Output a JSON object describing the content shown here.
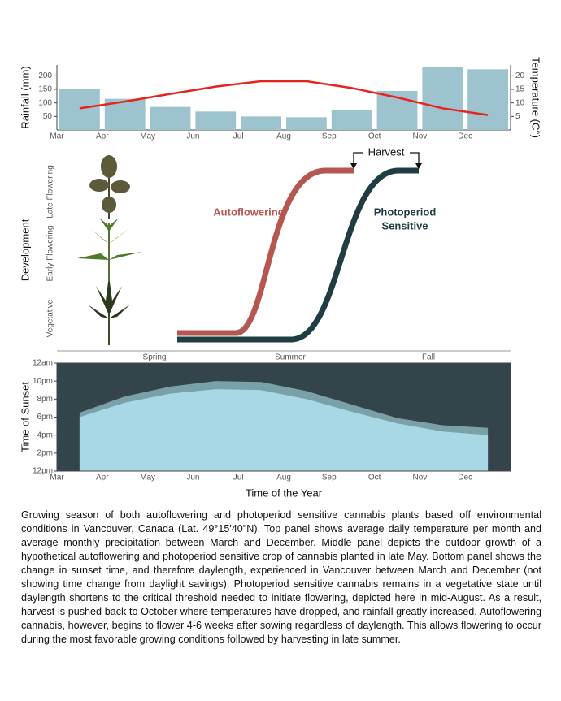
{
  "chart_data": [
    {
      "type": "bar",
      "categories": [
        "Mar",
        "Apr",
        "May",
        "Jun",
        "Jul",
        "Aug",
        "Sep",
        "Oct",
        "Nov",
        "Dec"
      ],
      "y_label": "Rainfall (mm)",
      "y2_label": "Temperature (C°)",
      "ylim": [
        0,
        240
      ],
      "yticks": [
        50,
        100,
        150,
        200
      ],
      "y2lim": [
        0,
        24
      ],
      "y2ticks": [
        5,
        10,
        15,
        20
      ],
      "series": [
        {
          "type": "bar",
          "color": "#9dc3cf",
          "values": [
            153,
            115,
            85,
            68,
            50,
            47,
            74,
            144,
            232,
            224
          ]
        },
        {
          "type": "line",
          "axis": "y2",
          "color": "#e8221c",
          "values": [
            8,
            10.5,
            13.3,
            16,
            18,
            18,
            15.5,
            12,
            8,
            5.5
          ]
        }
      ]
    },
    {
      "type": "area",
      "categories": [
        "Mar",
        "Apr",
        "May",
        "Jun",
        "Jul",
        "Aug",
        "Sep",
        "Oct",
        "Nov",
        "Dec"
      ],
      "y_label": "Time of Sunset",
      "x_label": "Time of the Year",
      "ylim": [
        12,
        24
      ],
      "yticks": [
        {
          "value": 12,
          "label": "12pm"
        },
        {
          "value": 14,
          "label": "2pm"
        },
        {
          "value": 16,
          "label": "4pm"
        },
        {
          "value": 18,
          "label": "6pm"
        },
        {
          "value": 20,
          "label": "8pm"
        },
        {
          "value": 22,
          "label": "10pm"
        },
        {
          "value": 24,
          "label": "12am"
        }
      ],
      "background": "#34444b",
      "series": [
        {
          "color": "#7aa0a8",
          "values": [
            18.5,
            20.3,
            21.4,
            22.0,
            21.9,
            20.9,
            19.4,
            17.9,
            17.1,
            16.8
          ]
        },
        {
          "color": "#a8d8e6",
          "values": [
            18.0,
            19.6,
            20.6,
            21.1,
            21.0,
            20.0,
            18.6,
            17.3,
            16.4,
            16.0
          ]
        }
      ]
    }
  ],
  "development_panel": {
    "y_label": "Development",
    "stages": [
      "Vegetative",
      "Early Flowering",
      "Late Flowering"
    ],
    "seasons": [
      "Spring",
      "Summer",
      "Fall"
    ],
    "autoflowering_label": "Autoflowering",
    "photoperiod_label": [
      "Photoperiod",
      "Sensitive"
    ],
    "harvest_label": "Harvest"
  },
  "caption": "Growing season of both autoflowering and photoperiod sensitive cannabis plants based off environmental conditions in Vancouver, Canada (Lat. 49°15'40\"N).  Top panel shows average daily temperature per month and average monthly precipitation between March and December.  Middle panel depicts the outdoor growth of a hypothetical autoflowering and photoperiod sensitive crop of cannabis planted in late May.  Bottom panel shows the change in sunset time, and therefore daylength, experienced in Vancouver between March and December (not showing time change from daylight savings).  Photoperiod sensitive cannabis remains in a vegetative state until daylength shortens to the critical threshold needed to initiate flowering, depicted here in mid-August.  As a result, harvest is pushed back to October where temperatures have dropped, and rainfall greatly increased. Autoflowering cannabis, however, begins to flower 4-6 weeks after sowing regardless of daylength.  This allows flowering to occur during the most favorable growing conditions followed by harvesting in late summer."
}
